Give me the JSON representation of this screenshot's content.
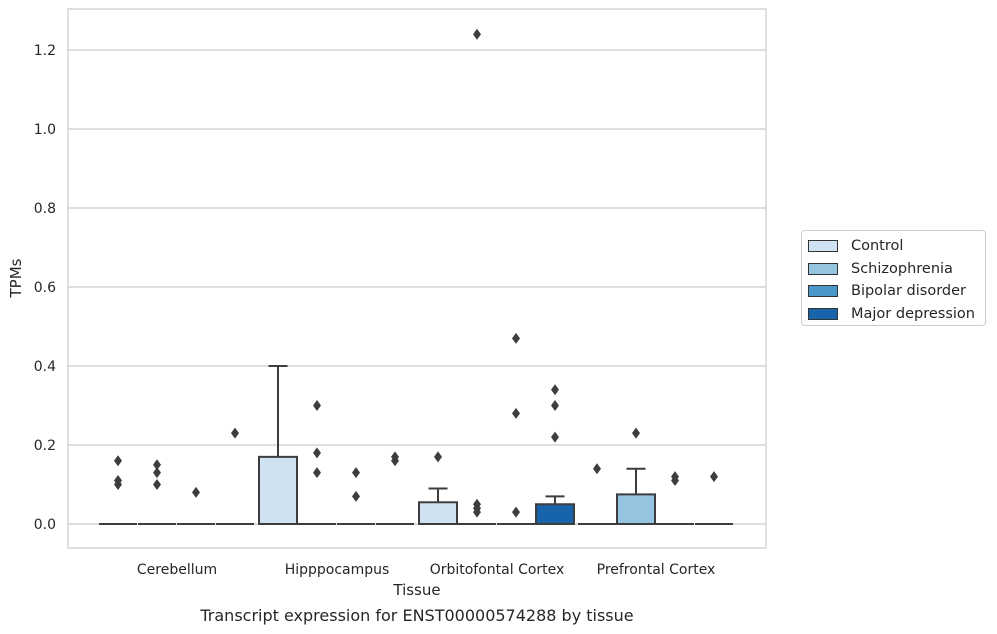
{
  "chart_data": {
    "type": "box",
    "caption": "Transcript expression for ENST00000574288 by tissue",
    "xlabel": "Tissue",
    "ylabel": "TPMs",
    "ylim": [
      -0.06,
      1.3
    ],
    "yticks": [
      "0.0",
      "0.2",
      "0.4",
      "0.6",
      "0.8",
      "1.0",
      "1.2"
    ],
    "ytick_values": [
      0.0,
      0.2,
      0.4,
      0.6,
      0.8,
      1.0,
      1.2
    ],
    "grid": true,
    "legend_position": "right",
    "categories": [
      "Cerebellum",
      "Hipppocampus",
      "Orbitofontal Cortex",
      "Prefrontal Cortex"
    ],
    "series": [
      {
        "name": "Control",
        "color": "#d0e1f2"
      },
      {
        "name": "Schizophrenia",
        "color": "#94c4df"
      },
      {
        "name": "Bipolar disorder",
        "color": "#4a98c9"
      },
      {
        "name": "Major depression",
        "color": "#1764ab"
      }
    ],
    "boxes": [
      {
        "category": 0,
        "series": 0,
        "q1": 0,
        "median": 0,
        "q3": 0,
        "whislo": 0,
        "whishi": 0,
        "fliers": [
          0.16,
          0.11,
          0.1
        ]
      },
      {
        "category": 0,
        "series": 1,
        "q1": 0,
        "median": 0,
        "q3": 0,
        "whislo": 0,
        "whishi": 0,
        "fliers": [
          0.15,
          0.13,
          0.1
        ]
      },
      {
        "category": 0,
        "series": 2,
        "q1": 0,
        "median": 0,
        "q3": 0,
        "whislo": 0,
        "whishi": 0,
        "fliers": [
          0.08
        ]
      },
      {
        "category": 0,
        "series": 3,
        "q1": 0,
        "median": 0,
        "q3": 0,
        "whislo": 0,
        "whishi": 0,
        "fliers": [
          0.23
        ]
      },
      {
        "category": 1,
        "series": 0,
        "q1": 0,
        "median": 0,
        "q3": 0.17,
        "whislo": 0,
        "whishi": 0.4,
        "fliers": []
      },
      {
        "category": 1,
        "series": 1,
        "q1": 0,
        "median": 0,
        "q3": 0,
        "whislo": 0,
        "whishi": 0,
        "fliers": [
          0.3,
          0.18,
          0.13
        ]
      },
      {
        "category": 1,
        "series": 2,
        "q1": 0,
        "median": 0,
        "q3": 0,
        "whislo": 0,
        "whishi": 0,
        "fliers": [
          0.13,
          0.07
        ]
      },
      {
        "category": 1,
        "series": 3,
        "q1": 0,
        "median": 0,
        "q3": 0,
        "whislo": 0,
        "whishi": 0,
        "fliers": [
          0.17,
          0.16
        ]
      },
      {
        "category": 2,
        "series": 0,
        "q1": 0,
        "median": 0,
        "q3": 0.055,
        "whislo": 0,
        "whishi": 0.09,
        "fliers": [
          0.17
        ]
      },
      {
        "category": 2,
        "series": 1,
        "q1": 0,
        "median": 0,
        "q3": 0,
        "whislo": 0,
        "whishi": 0,
        "fliers": [
          1.24,
          0.05,
          0.04,
          0.03
        ]
      },
      {
        "category": 2,
        "series": 2,
        "q1": 0,
        "median": 0,
        "q3": 0,
        "whislo": 0,
        "whishi": 0,
        "fliers": [
          0.47,
          0.28,
          0.03
        ]
      },
      {
        "category": 2,
        "series": 3,
        "q1": 0,
        "median": 0,
        "q3": 0.05,
        "whislo": 0,
        "whishi": 0.07,
        "fliers": [
          0.34,
          0.3,
          0.22
        ]
      },
      {
        "category": 3,
        "series": 0,
        "q1": 0,
        "median": 0,
        "q3": 0,
        "whislo": 0,
        "whishi": 0,
        "fliers": [
          0.14
        ]
      },
      {
        "category": 3,
        "series": 1,
        "q1": 0,
        "median": 0,
        "q3": 0.075,
        "whislo": 0,
        "whishi": 0.14,
        "fliers": [
          0.23
        ]
      },
      {
        "category": 3,
        "series": 2,
        "q1": 0,
        "median": 0,
        "q3": 0,
        "whislo": 0,
        "whishi": 0,
        "fliers": [
          0.12,
          0.11
        ]
      },
      {
        "category": 3,
        "series": 3,
        "q1": 0,
        "median": 0,
        "q3": 0,
        "whislo": 0,
        "whishi": 0,
        "fliers": [
          0.12
        ]
      }
    ]
  }
}
